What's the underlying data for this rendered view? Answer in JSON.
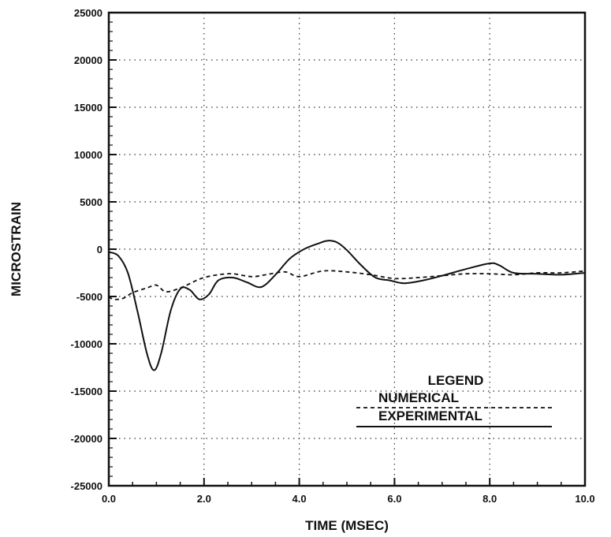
{
  "chart_data": {
    "type": "line",
    "title": "",
    "xlabel": "TIME (MSEC)",
    "ylabel": "MICROSTRAIN",
    "xlim": [
      0,
      10
    ],
    "ylim": [
      -25000,
      25000
    ],
    "x_ticks": [
      "0.0",
      "2.0",
      "4.0",
      "6.0",
      "8.0",
      "10.0"
    ],
    "y_ticks": [
      "25000",
      "20000",
      "15000",
      "10000",
      "5000",
      "0",
      "-5000",
      "-10000",
      "-15000",
      "-20000",
      "-25000"
    ],
    "grid": true,
    "legend": {
      "title": "LEGEND",
      "placement": "bottom-right",
      "entries": [
        "NUMERICAL",
        "EXPERIMENTAL"
      ]
    },
    "series": [
      {
        "name": "NUMERICAL",
        "style": "dashed",
        "x": [
          0.0,
          0.1,
          0.3,
          0.5,
          0.8,
          1.0,
          1.2,
          1.5,
          1.8,
          2.0,
          2.3,
          2.6,
          3.0,
          3.3,
          3.7,
          4.0,
          4.5,
          5.0,
          5.5,
          6.0,
          6.5,
          7.0,
          7.5,
          8.0,
          8.5,
          9.0,
          9.5,
          10.0
        ],
        "values": [
          -5000,
          -5300,
          -5200,
          -4600,
          -4100,
          -3800,
          -4500,
          -4100,
          -3400,
          -3000,
          -2700,
          -2600,
          -2900,
          -2700,
          -2400,
          -2900,
          -2300,
          -2400,
          -2700,
          -3100,
          -3000,
          -2800,
          -2600,
          -2600,
          -2700,
          -2500,
          -2500,
          -2300
        ]
      },
      {
        "name": "EXPERIMENTAL",
        "style": "solid",
        "x": [
          0.0,
          0.2,
          0.4,
          0.6,
          0.8,
          0.95,
          1.1,
          1.3,
          1.5,
          1.7,
          1.9,
          2.1,
          2.3,
          2.6,
          2.9,
          3.2,
          3.5,
          3.8,
          4.1,
          4.4,
          4.6,
          4.8,
          5.0,
          5.3,
          5.6,
          5.9,
          6.2,
          6.6,
          7.0,
          7.5,
          8.0,
          8.2,
          8.5,
          9.0,
          9.5,
          10.0
        ],
        "values": [
          -300,
          -700,
          -2500,
          -6500,
          -11000,
          -12800,
          -11000,
          -6500,
          -4200,
          -4300,
          -5300,
          -4800,
          -3300,
          -3000,
          -3500,
          -4000,
          -2700,
          -1000,
          0,
          600,
          900,
          700,
          -100,
          -1700,
          -3000,
          -3300,
          -3600,
          -3300,
          -2800,
          -2100,
          -1500,
          -1700,
          -2500,
          -2600,
          -2700,
          -2500
        ]
      }
    ],
    "annotations": []
  }
}
